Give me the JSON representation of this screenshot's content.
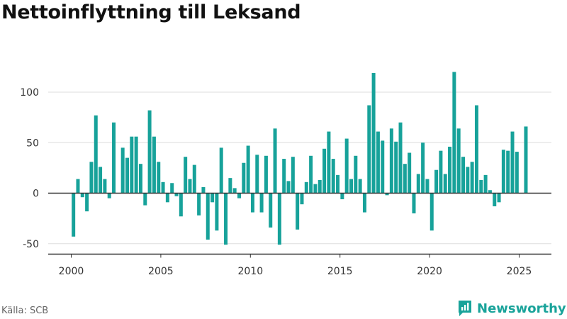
{
  "title": "Nettoinflyttning till Leksand",
  "source": "Källa: SCB",
  "brand": {
    "name": "Newsworthy",
    "icon": "newsworthy-logo-icon",
    "color": "#19a39a"
  },
  "colors": {
    "bar": "#17a29a",
    "grid": "#dddddd",
    "axis": "#333333"
  },
  "chart_data": {
    "type": "bar",
    "title": "Nettoinflyttning till Leksand",
    "xlabel": "",
    "ylabel": "",
    "frequency": "quarterly",
    "first_period": "2000-Q1",
    "ylim": [
      -55,
      125
    ],
    "yticks": [
      -50,
      0,
      50,
      100
    ],
    "xticks": [
      2000,
      2005,
      2010,
      2015,
      2020,
      2025
    ],
    "grid": true,
    "legend": "none",
    "values": [
      -43,
      14,
      -4,
      -18,
      31,
      77,
      26,
      14,
      -5,
      70,
      0,
      45,
      35,
      56,
      56,
      29,
      -12,
      82,
      56,
      31,
      11,
      -9,
      10,
      -3,
      -23,
      36,
      14,
      28,
      -22,
      6,
      -46,
      -9,
      -37,
      45,
      -51,
      15,
      5,
      -5,
      30,
      47,
      -19,
      38,
      -19,
      37,
      -34,
      64,
      -51,
      34,
      12,
      36,
      -36,
      -11,
      11,
      37,
      9,
      13,
      44,
      61,
      34,
      18,
      -6,
      54,
      14,
      37,
      14,
      -19,
      87,
      119,
      61,
      52,
      -2,
      64,
      51,
      70,
      29,
      40,
      -20,
      19,
      50,
      14,
      -37,
      23,
      42,
      19,
      46,
      120,
      64,
      36,
      26,
      31,
      87,
      13,
      18,
      3,
      -13,
      -9,
      43,
      42,
      61,
      41,
      0,
      66
    ]
  }
}
